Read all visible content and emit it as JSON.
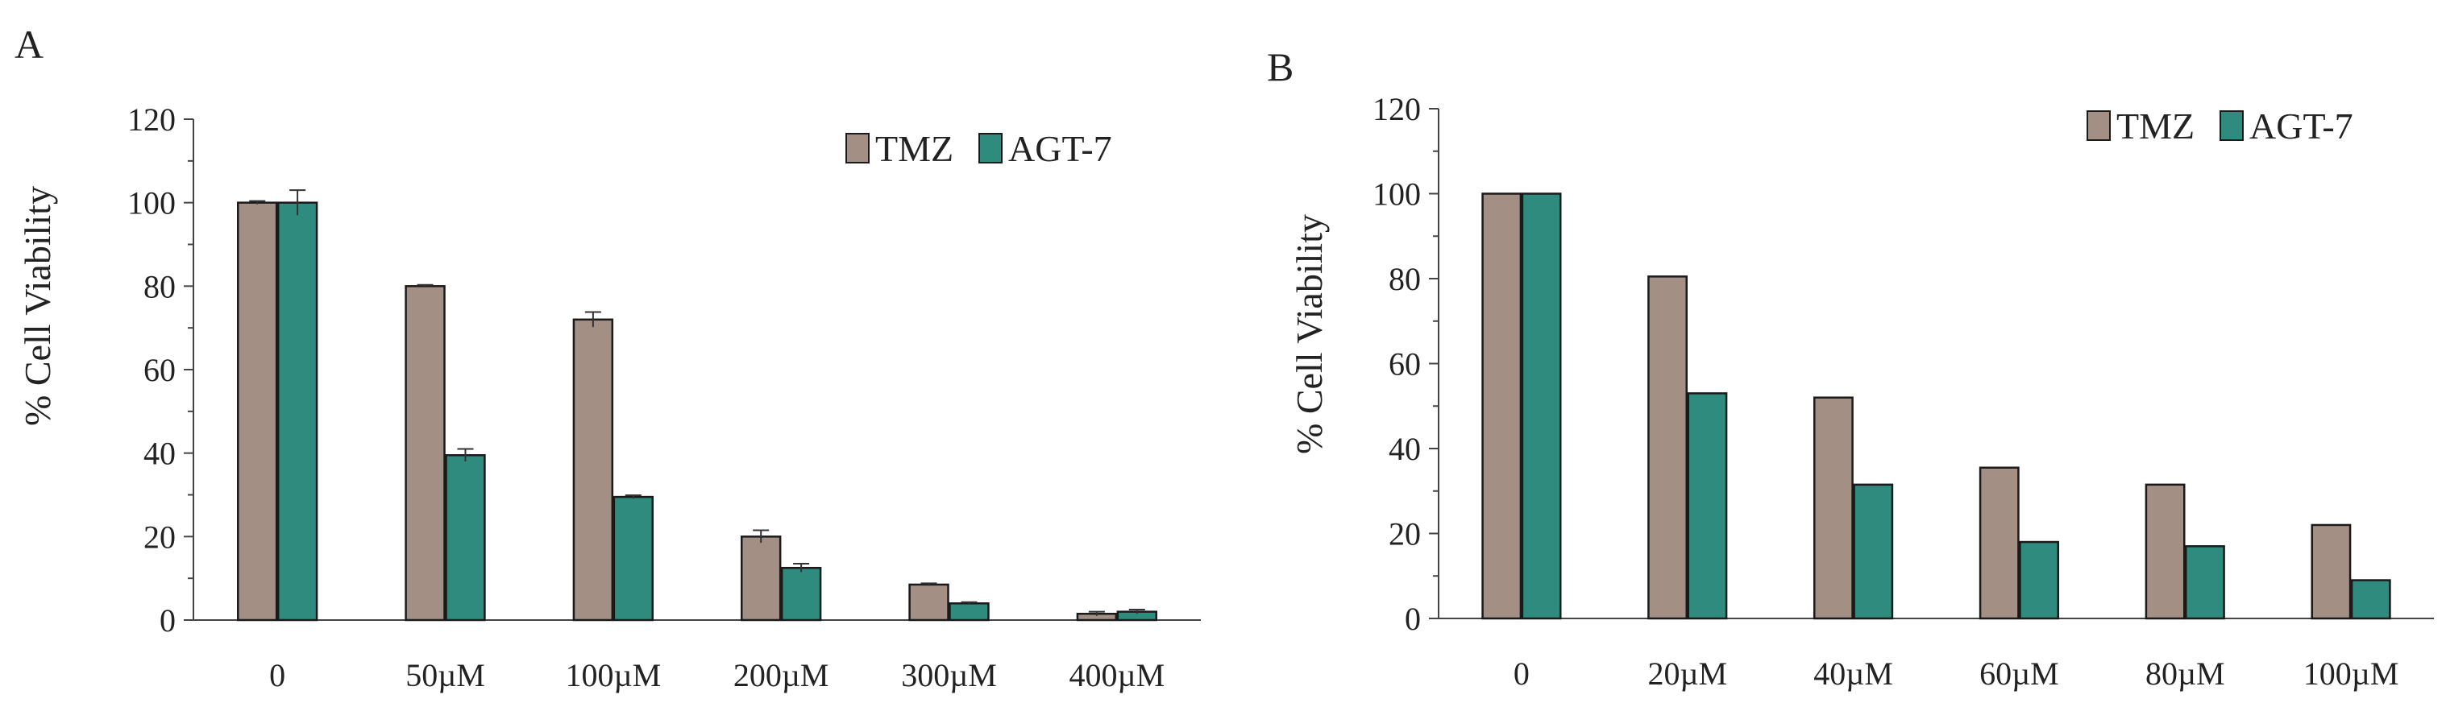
{
  "panels": [
    {
      "letter": "A",
      "ylabel": "% Cell Viability",
      "chart_data": {
        "type": "bar",
        "ylabel": "% Cell Viability",
        "ylim": [
          0,
          120
        ],
        "yticks": [
          "0",
          "20",
          "40",
          "60",
          "80",
          "100",
          "120"
        ],
        "categories": [
          "0",
          "50µM",
          "100µM",
          "200µM",
          "300µM",
          "400µM"
        ],
        "legend_position": "top-right",
        "series": [
          {
            "name": "TMZ",
            "color": "#a38f84",
            "values": [
              100,
              80,
              72,
              20,
              8.5,
              1.5
            ],
            "errors": [
              0.4,
              0.3,
              1.8,
              1.5,
              0.3,
              0.5
            ]
          },
          {
            "name": "AGT-7",
            "color": "#2e8b7e",
            "values": [
              100,
              39.5,
              29.5,
              12.5,
              4,
              2
            ],
            "errors": [
              3,
              1.5,
              0.4,
              1,
              0.3,
              0.5
            ]
          }
        ]
      }
    },
    {
      "letter": "B",
      "ylabel": "% Cell Viability",
      "chart_data": {
        "type": "bar",
        "ylabel": "% Cell Viability",
        "ylim": [
          0,
          120
        ],
        "yticks": [
          "0",
          "20",
          "40",
          "60",
          "80",
          "100",
          "120"
        ],
        "categories": [
          "0",
          "20µM",
          "40µM",
          "60µM",
          "80µM",
          "100µM"
        ],
        "legend_position": "top-right",
        "series": [
          {
            "name": "TMZ",
            "color": "#a38f84",
            "values": [
              100,
              80.5,
              52,
              35.5,
              31.5,
              22
            ],
            "errors": [
              0,
              0,
              0,
              0,
              0,
              0
            ]
          },
          {
            "name": "AGT-7",
            "color": "#2e8b7e",
            "values": [
              100,
              53,
              31.5,
              18,
              17,
              9
            ],
            "errors": [
              0,
              0,
              0,
              0,
              0,
              0
            ]
          }
        ]
      }
    }
  ]
}
